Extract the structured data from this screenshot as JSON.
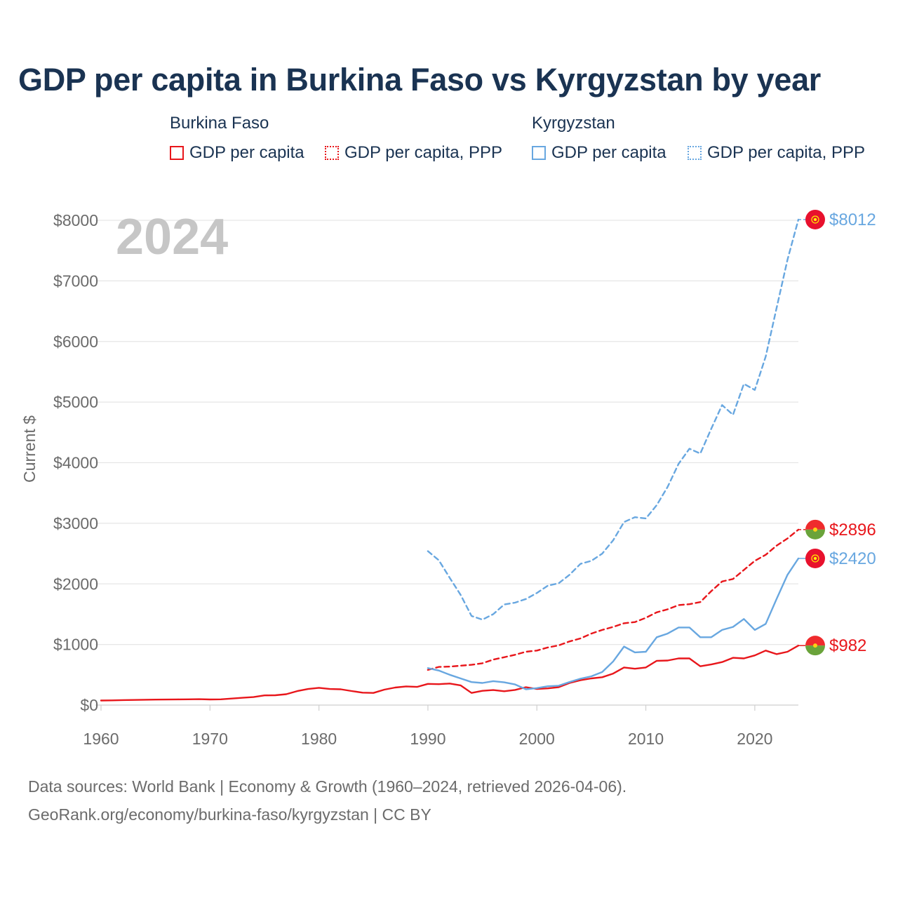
{
  "title": "GDP per capita in Burkina Faso vs Kyrgyzstan by year",
  "legend": {
    "groups": [
      {
        "name": "Burkina Faso",
        "items": [
          {
            "label": "GDP per capita",
            "style": "solid",
            "color": "#e8161b"
          },
          {
            "label": "GDP per capita, PPP",
            "style": "dotted",
            "color": "#e8161b"
          }
        ]
      },
      {
        "name": "Kyrgyzstan",
        "items": [
          {
            "label": "GDP per capita",
            "style": "solid",
            "color": "#68a7e0"
          },
          {
            "label": "GDP per capita, PPP",
            "style": "dotted",
            "color": "#68a7e0"
          }
        ]
      }
    ]
  },
  "year_watermark": "2024",
  "source_line1": "Data sources: World Bank | Economy & Growth (1960–2024, retrieved 2026-04-06).",
  "source_line2": "GeoRank.org/economy/burkina-faso/kyrgyzstan | CC BY",
  "chart_data": {
    "type": "line",
    "title": "GDP per capita in Burkina Faso vs Kyrgyzstan by year",
    "xlabel": "",
    "ylabel": "Current $",
    "xlim": [
      1960,
      2024
    ],
    "ylim": [
      0,
      8000
    ],
    "x_ticks": [
      1960,
      1970,
      1980,
      1990,
      2000,
      2010,
      2020
    ],
    "y_ticks": [
      0,
      1000,
      2000,
      3000,
      4000,
      5000,
      6000,
      7000,
      8000
    ],
    "y_tick_labels": [
      "$0",
      "$1000",
      "$2000",
      "$3000",
      "$4000",
      "$5000",
      "$6000",
      "$7000",
      "$8000"
    ],
    "x_tick_labels": [
      "1960",
      "1970",
      "1980",
      "1990",
      "2000",
      "2010",
      "2020"
    ],
    "series": [
      {
        "name": "Burkina Faso GDP per capita",
        "color": "#e8161b",
        "dash": "solid",
        "end_label": "$982",
        "x": [
          1960,
          1961,
          1962,
          1963,
          1964,
          1965,
          1966,
          1967,
          1968,
          1969,
          1970,
          1971,
          1972,
          1973,
          1974,
          1975,
          1976,
          1977,
          1978,
          1979,
          1980,
          1981,
          1982,
          1983,
          1984,
          1985,
          1986,
          1987,
          1988,
          1989,
          1990,
          1991,
          1992,
          1993,
          1994,
          1995,
          1996,
          1997,
          1998,
          1999,
          2000,
          2001,
          2002,
          2003,
          2004,
          2005,
          2006,
          2007,
          2008,
          2009,
          2010,
          2011,
          2012,
          2013,
          2014,
          2015,
          2016,
          2017,
          2018,
          2019,
          2020,
          2021,
          2022,
          2023,
          2024
        ],
        "y": [
          75,
          78,
          82,
          85,
          88,
          90,
          92,
          94,
          95,
          97,
          93,
          95,
          108,
          120,
          132,
          160,
          162,
          180,
          230,
          265,
          285,
          265,
          260,
          232,
          205,
          200,
          255,
          290,
          308,
          300,
          350,
          345,
          355,
          325,
          200,
          235,
          248,
          228,
          250,
          295,
          265,
          275,
          295,
          365,
          410,
          440,
          460,
          520,
          620,
          600,
          620,
          730,
          735,
          770,
          770,
          640,
          670,
          710,
          780,
          770,
          820,
          900,
          840,
          880,
          982
        ]
      },
      {
        "name": "Burkina Faso GDP per capita, PPP",
        "color": "#e8161b",
        "dash": "dashed",
        "end_label": "$2896",
        "x": [
          1990,
          1991,
          1992,
          1993,
          1994,
          1995,
          1996,
          1997,
          1998,
          1999,
          2000,
          2001,
          2002,
          2003,
          2004,
          2005,
          2006,
          2007,
          2008,
          2009,
          2010,
          2011,
          2012,
          2013,
          2014,
          2015,
          2016,
          2017,
          2018,
          2019,
          2020,
          2021,
          2022,
          2023,
          2024
        ],
        "y": [
          580,
          630,
          635,
          650,
          665,
          690,
          750,
          790,
          830,
          880,
          900,
          950,
          985,
          1050,
          1100,
          1180,
          1240,
          1290,
          1350,
          1370,
          1440,
          1530,
          1580,
          1650,
          1665,
          1700,
          1880,
          2040,
          2080,
          2230,
          2380,
          2480,
          2630,
          2750,
          2896
        ]
      },
      {
        "name": "Kyrgyzstan GDP per capita",
        "color": "#68a7e0",
        "dash": "solid",
        "end_label": "$2420",
        "x": [
          1990,
          1991,
          1992,
          1993,
          1994,
          1995,
          1996,
          1997,
          1998,
          1999,
          2000,
          2001,
          2002,
          2003,
          2004,
          2005,
          2006,
          2007,
          2008,
          2009,
          2010,
          2011,
          2012,
          2013,
          2014,
          2015,
          2016,
          2017,
          2018,
          2019,
          2020,
          2021,
          2022,
          2023,
          2024
        ],
        "y": [
          610,
          570,
          500,
          440,
          380,
          365,
          395,
          375,
          340,
          260,
          280,
          310,
          320,
          380,
          435,
          475,
          545,
          720,
          965,
          870,
          880,
          1120,
          1180,
          1280,
          1280,
          1120,
          1120,
          1240,
          1290,
          1420,
          1240,
          1340,
          1750,
          2150,
          2420
        ]
      },
      {
        "name": "Kyrgyzstan GDP per capita, PPP",
        "color": "#68a7e0",
        "dash": "dashed",
        "end_label": "$8012",
        "x": [
          1990,
          1991,
          1992,
          1993,
          1994,
          1995,
          1996,
          1997,
          1998,
          1999,
          2000,
          2001,
          2002,
          2003,
          2004,
          2005,
          2006,
          2007,
          2008,
          2009,
          2010,
          2011,
          2012,
          2013,
          2014,
          2015,
          2016,
          2017,
          2018,
          2019,
          2020,
          2021,
          2022,
          2023,
          2024
        ],
        "y": [
          2540,
          2390,
          2100,
          1820,
          1470,
          1410,
          1500,
          1660,
          1690,
          1750,
          1850,
          1970,
          2010,
          2150,
          2330,
          2380,
          2500,
          2720,
          3020,
          3100,
          3080,
          3300,
          3600,
          3980,
          4230,
          4150,
          4560,
          4950,
          4790,
          5300,
          5200,
          5750,
          6550,
          7350,
          8012
        ]
      }
    ]
  }
}
